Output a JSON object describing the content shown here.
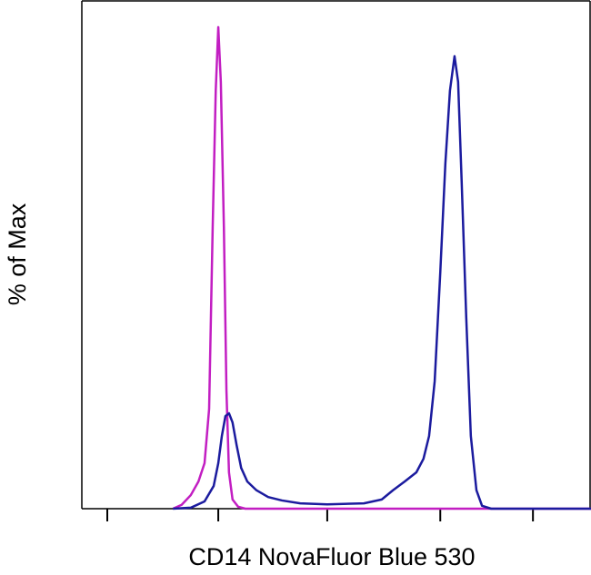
{
  "chart_data": {
    "type": "line",
    "xlabel": "CD14 NovaFluor Blue 530",
    "ylabel": "% of Max",
    "xlim": [
      0,
      100
    ],
    "ylim": [
      0,
      105
    ],
    "xticks": [
      5,
      26.8,
      48.2,
      70.4,
      88.6
    ],
    "series": [
      {
        "color": "#c21ec2",
        "x": [
          17.9,
          19.6,
          21.4,
          22.9,
          24.1,
          25,
          25.7,
          26.3,
          26.8,
          27.3,
          27.9,
          28.4,
          28.9,
          29.6,
          30.7,
          32.1,
          100
        ],
        "values": [
          0,
          0.8,
          2.8,
          5.6,
          9.4,
          20.6,
          58.1,
          86.3,
          99.4,
          88.1,
          58.1,
          24.4,
          7.5,
          1.9,
          0.4,
          0,
          0
        ]
      },
      {
        "color": "#1b1b9e",
        "x": [
          17.9,
          21.4,
          24.1,
          25.9,
          26.8,
          27.5,
          28.2,
          28.9,
          29.6,
          30.4,
          31.3,
          32.5,
          34.3,
          36.6,
          39.3,
          42.9,
          48.2,
          55.4,
          58.9,
          61.1,
          63.4,
          65.7,
          67.1,
          68.2,
          69.3,
          70.4,
          71.4,
          72.3,
          73.2,
          73.9,
          74.6,
          75.5,
          76.4,
          77.5,
          78.6,
          80.4,
          100
        ],
        "values": [
          0,
          0.2,
          1.5,
          4.7,
          9.4,
          15,
          19.1,
          19.7,
          17.8,
          13.1,
          8.4,
          5.6,
          3.8,
          2.4,
          1.7,
          1.1,
          0.9,
          1.1,
          1.9,
          3.8,
          5.6,
          7.5,
          10.3,
          15,
          26.3,
          48.8,
          71.3,
          86.3,
          93.4,
          88.1,
          67.5,
          39.4,
          15,
          3.8,
          0.6,
          0,
          0
        ]
      }
    ]
  }
}
